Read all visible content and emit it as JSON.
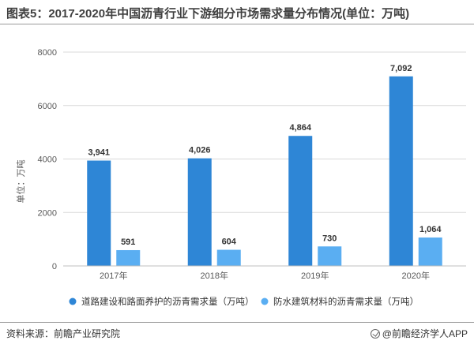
{
  "title": "图表5：2017-2020年中国沥青行业下游细分市场需求量分布情况(单位：万吨)",
  "footer": {
    "source": "资料来源：前瞻产业研究院",
    "brand": "@前瞻经济学人APP"
  },
  "colors": {
    "series1": "#2e86d6",
    "series2": "#5aaef2",
    "grid": "#d9d9d9",
    "axis_text": "#595959"
  },
  "chart_data": {
    "type": "bar",
    "ylabel": "单位：万吨",
    "ylim": [
      0,
      8000
    ],
    "yticks": [
      "0",
      "2000",
      "4000",
      "6000",
      "8000"
    ],
    "categories": [
      "2017年",
      "2018年",
      "2019年",
      "2020年"
    ],
    "series": [
      {
        "name": "道路建设和路面养护的沥青需求量（万吨）",
        "values": [
          3941,
          4026,
          4864,
          7092
        ],
        "labels": [
          "3,941",
          "4,026",
          "4,864",
          "7,092"
        ]
      },
      {
        "name": "防水建筑材料的沥青需求量（万吨）",
        "values": [
          591,
          604,
          730,
          1064
        ],
        "labels": [
          "591",
          "604",
          "730",
          "1,064"
        ]
      }
    ],
    "grid": true,
    "legend": "bottom"
  }
}
